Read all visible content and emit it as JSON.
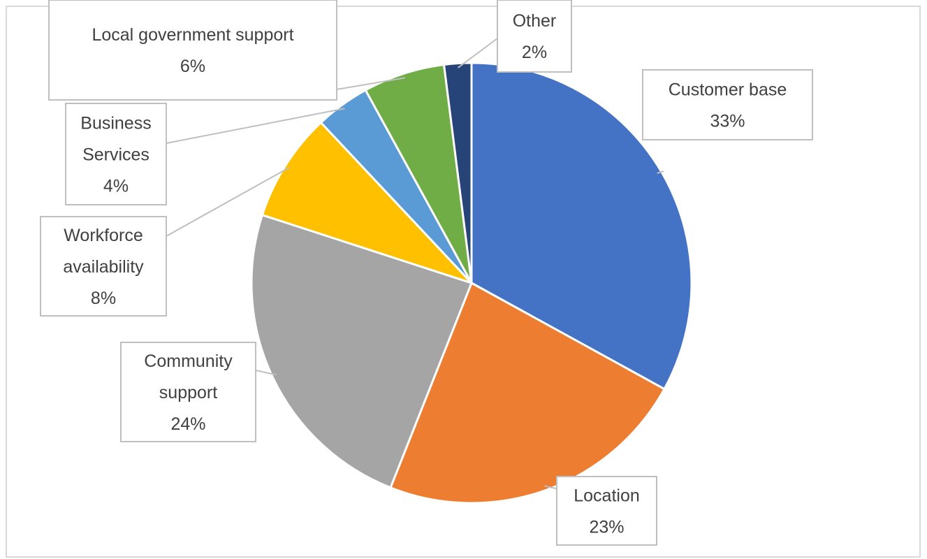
{
  "chart_data": {
    "type": "pie",
    "title": "",
    "slices": [
      {
        "name": "Customer base",
        "lines": [
          "Customer base",
          "33%"
        ],
        "value": 33,
        "color": "#4472C4"
      },
      {
        "name": "Location",
        "lines": [
          "Location",
          "23%"
        ],
        "value": 23,
        "color": "#ED7D31"
      },
      {
        "name": "Community support",
        "lines": [
          "Community",
          "support",
          "24%"
        ],
        "value": 24,
        "color": "#A5A5A5"
      },
      {
        "name": "Workforce availability",
        "lines": [
          "Workforce",
          "availability",
          "8%"
        ],
        "value": 8,
        "color": "#FFC000"
      },
      {
        "name": "Business Services",
        "lines": [
          "Business",
          "Services",
          "4%"
        ],
        "value": 4,
        "color": "#5B9BD5"
      },
      {
        "name": "Local government support",
        "lines": [
          "Local government support",
          "6%"
        ],
        "value": 6,
        "color": "#70AD47"
      },
      {
        "name": "Other",
        "lines": [
          "Other",
          "2%"
        ],
        "value": 2,
        "color": "#264478"
      }
    ],
    "legend": "none",
    "data_labels": "callouts"
  }
}
